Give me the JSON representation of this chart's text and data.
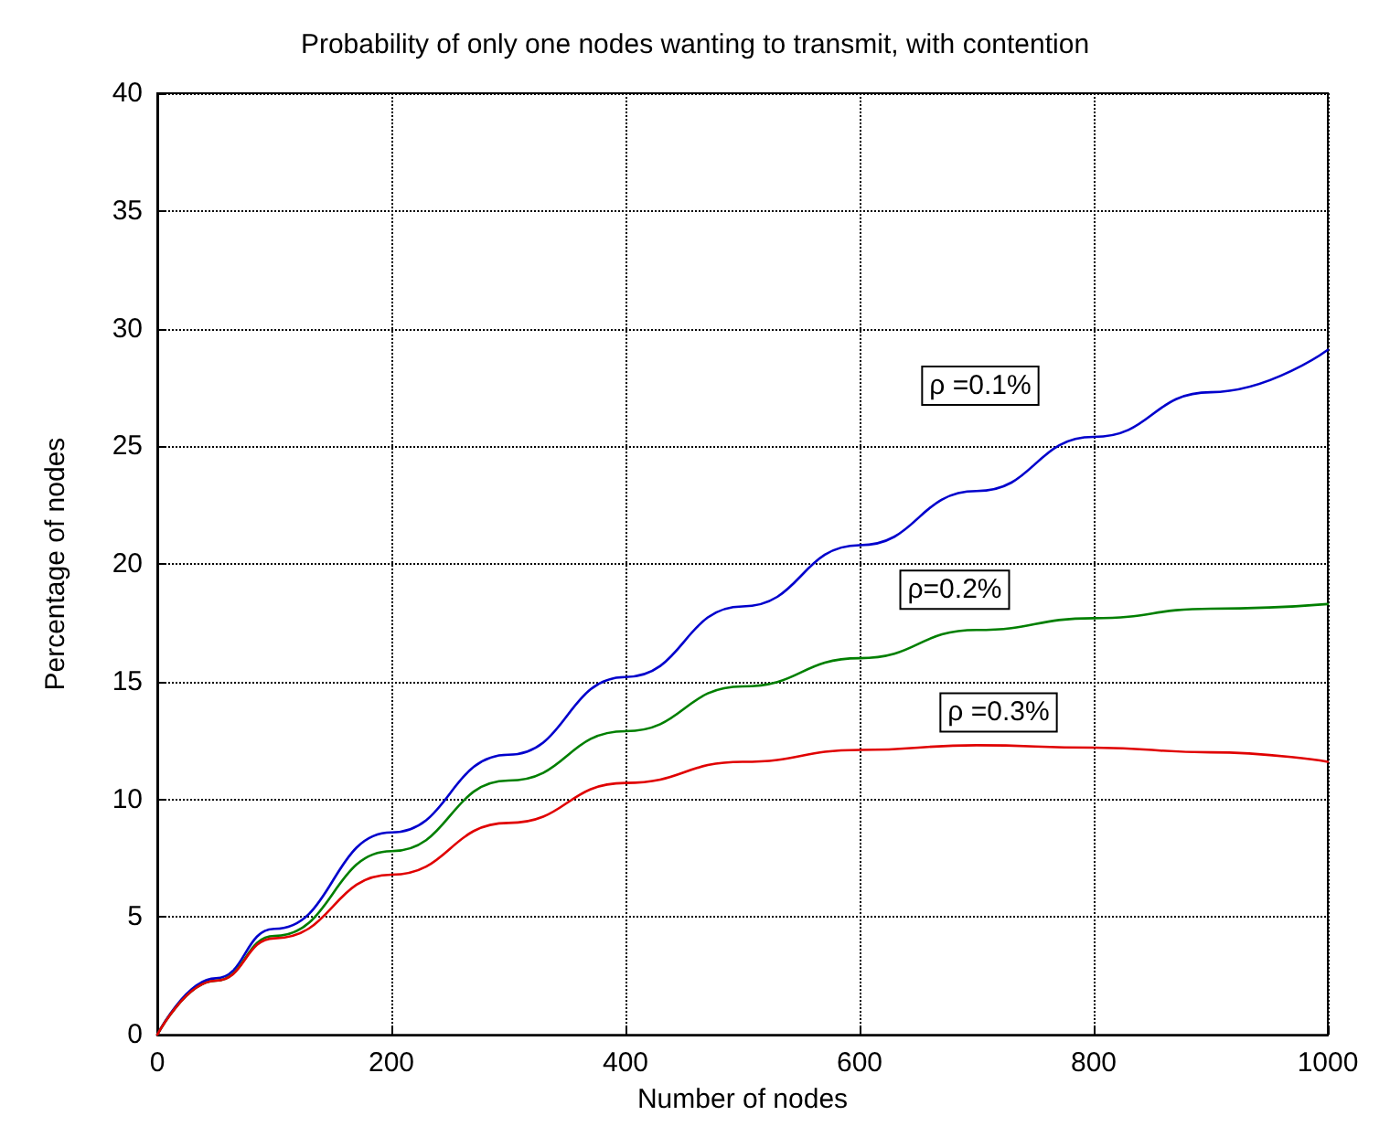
{
  "chart_data": {
    "type": "line",
    "title": "Probability of only one nodes wanting to transmit, with contention",
    "xlabel": "Number of nodes",
    "ylabel": "Percentage of nodes",
    "x": [
      0,
      50,
      100,
      200,
      300,
      400,
      500,
      600,
      700,
      800,
      900,
      1000
    ],
    "series": [
      {
        "name": "ρ =0.1%",
        "color": "#0000cc",
        "values": [
          0,
          2.4,
          4.5,
          8.6,
          11.9,
          15.2,
          18.2,
          20.8,
          23.1,
          25.4,
          27.3,
          29.1
        ]
      },
      {
        "name": "ρ=0.2%",
        "color": "#007f00",
        "values": [
          0,
          2.3,
          4.2,
          7.8,
          10.8,
          12.9,
          14.8,
          16.0,
          17.2,
          17.7,
          18.1,
          18.3
        ]
      },
      {
        "name": "ρ =0.3%",
        "color": "#e00000",
        "values": [
          0,
          2.3,
          4.1,
          6.8,
          9.0,
          10.7,
          11.6,
          12.1,
          12.3,
          12.2,
          12.0,
          11.6
        ]
      }
    ],
    "xlim": [
      0,
      1000
    ],
    "xticks": [
      0,
      200,
      400,
      600,
      800,
      1000
    ],
    "ylim": [
      0,
      40
    ],
    "yticks": [
      0,
      5,
      10,
      15,
      20,
      25,
      30,
      35,
      40
    ],
    "grid": true,
    "marker": "none",
    "line_style": "solid"
  }
}
